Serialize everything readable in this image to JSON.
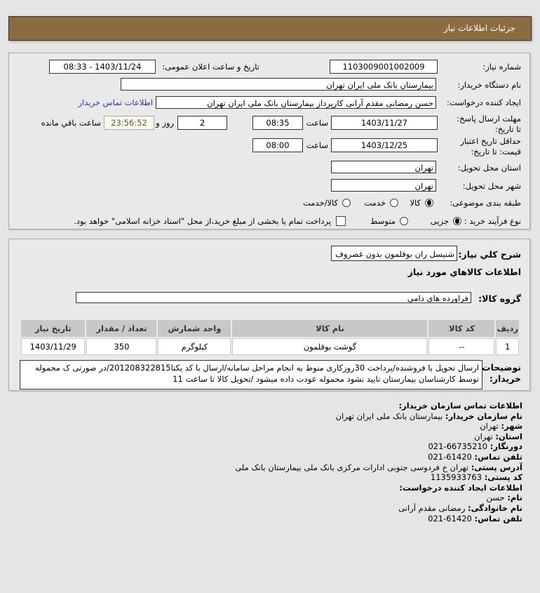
{
  "header": {
    "title": "جزئیات اطلاعات نیاز"
  },
  "form": {
    "need_number_label": "شماره نیاز:",
    "need_number": "1103009001002009",
    "announce_label": "تاریخ و ساعت اعلان عمومی:",
    "announce_value": "1403/11/24 - 08:33",
    "buyer_label": "نام دستگاه خریدار:",
    "buyer": "بیمارستان بانک ملی ایران تهران",
    "creator_label": "ایجاد کننده درخواست:",
    "creator": "حسن رمضانی مقدم آرانی کارپرداز بیمارستان بانک ملی ایران تهران",
    "contact_link": "اطلاعات تماس خریدار",
    "deadline_label": "مهلت ارسال پاسخ: تا تاریخ:",
    "deadline_date": "1403/11/27",
    "time_label": "ساعت",
    "deadline_time": "08:35",
    "days": "2",
    "days_label": "روز و",
    "remaining": "23:56:52",
    "remaining_label": "ساعت باقي مانده",
    "validity_label": "حداقل تاریخ اعتبار قیمت: تا تاریخ:",
    "validity_date": "1403/12/25",
    "validity_time": "08:00",
    "province_label": "استان محل تحویل:",
    "province": "تهران",
    "city_label": "شهر محل تحویل:",
    "city": "تهران",
    "category_label": "طبقه بندی موضوعی:",
    "category_options": [
      "کالا",
      "خدمت",
      "کالا/خدمت"
    ],
    "category_selected": "کالا",
    "process_label": "نوع فرآیند خرید :",
    "process_options": [
      "جزیی",
      "متوسط"
    ],
    "process_selected": "جزیی",
    "treasury_text": "پرداخت تمام یا بخشی از مبلغ خرید،از محل \"اسناد خزانه اسلامی\" خواهد بود.",
    "treasury_checked": false
  },
  "goods": {
    "summary_label": "شرح کلي نیاز:",
    "summary": "شنیسل ران بوقلمون بدون غضروف",
    "heading": "اطلاعات کالاهاي مورد نیاز",
    "group_label": "گروه کالا:",
    "group": "فراورده های دامی",
    "columns": [
      "ردیف",
      "کد کالا",
      "نام کالا",
      "واحد شمارش",
      "تعداد / مقدار",
      "تاریخ نیاز"
    ],
    "rows": [
      [
        "1",
        "--",
        "گوشت بوقلمون",
        "کیلوگرم",
        "350",
        "1403/11/29"
      ]
    ],
    "notes_label": "توضیحات خریدار:",
    "notes": "ارسال تحویل با فروشنده/پرداخت 30روزکاری منوط به انجام مراحل سامانه/ارسال با کد یکتا201208322815/در صورتی ک محموله توسط کارشناسان بیمارستان تایید نشود محموله عودت داده میشود /تحویل کالا تا ساعت 11"
  },
  "contact": {
    "heading": "اطلاعات تماس سازمان خریدار:",
    "org_label": "نام سازمان خریدار:",
    "org": "بیمارستان بانک ملی ایران تهران",
    "city_label": "شهر:",
    "city": "تهران",
    "province_label": "استان:",
    "province": "تهران",
    "fax_label": "دورنگار:",
    "fax": "66735210-021",
    "phone_label": "تلفن تماس:",
    "phone": "61420-021",
    "address_label": "آدرس پستی:",
    "address": "تهران خ فردوسی جنوبی ادارات مرکزی بانک ملی بیمارستان بانک ملی",
    "postal_label": "کد پستی:",
    "postal": "1135933763",
    "creator_heading": "اطلاعات ایجاد کننده درخواست:",
    "name_label": "نام:",
    "name": "حسن",
    "family_label": "نام خانوادگی:",
    "family": "رمضانی مقدم آرانی",
    "creator_phone_label": "تلفن تماس:",
    "creator_phone": "61420-021"
  },
  "colors": {
    "header": "#8b6c42",
    "link": "#1a3fb0"
  }
}
